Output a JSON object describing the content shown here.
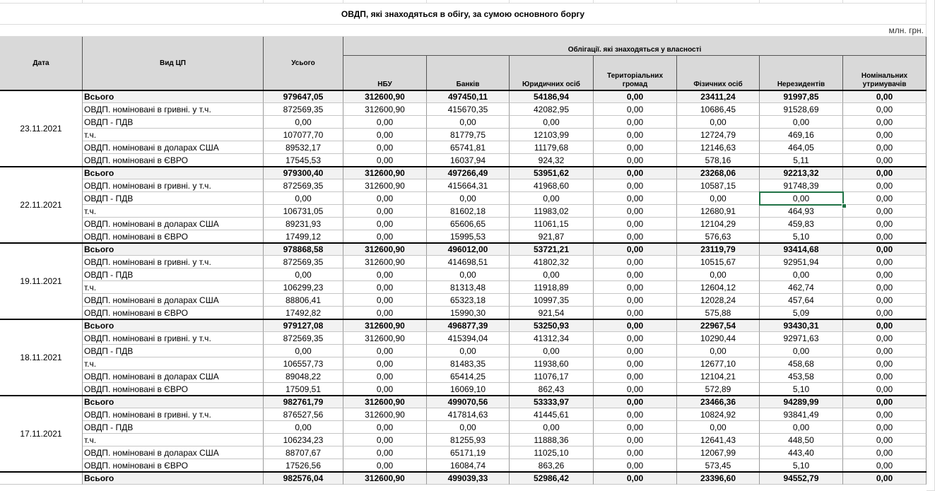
{
  "title": "ОВДП, які знаходяться в обігу, за сумою основного боргу",
  "unit": "млн. грн.",
  "header": {
    "date": "Дата",
    "kind": "Вид ЦП",
    "total": "Усього",
    "group": "Облігації. які знаходяться у власності",
    "columns": [
      "НБУ",
      "Банків",
      "Юридичних осіб",
      "Територіальних громад",
      "Фізичних осіб",
      "Нерезидентів",
      "Номінальних утримувачів"
    ]
  },
  "groups": [
    {
      "date": "23.11.2021",
      "rows": [
        {
          "kind": "Всього",
          "cells": [
            "979647,05",
            "312600,90",
            "497450,11",
            "54186,94",
            "0,00",
            "23411,24",
            "91997,85",
            "0,00"
          ]
        },
        {
          "kind": "ОВДП. номіновані в гривні. у т.ч.",
          "cells": [
            "872569,35",
            "312600,90",
            "415670,35",
            "42082,95",
            "0,00",
            "10686,45",
            "91528,69",
            "0,00"
          ]
        },
        {
          "kind": "ОВДП - ПДВ",
          "cells": [
            "0,00",
            "0,00",
            "0,00",
            "0,00",
            "0,00",
            "0,00",
            "0,00",
            "0,00"
          ]
        },
        {
          "kind": "т.ч.",
          "cells": [
            "107077,70",
            "0,00",
            "81779,75",
            "12103,99",
            "0,00",
            "12724,79",
            "469,16",
            "0,00"
          ]
        },
        {
          "kind": "ОВДП. номіновані в доларах США",
          "cells": [
            "89532,17",
            "0,00",
            "65741,81",
            "11179,68",
            "0,00",
            "12146,63",
            "464,05",
            "0,00"
          ]
        },
        {
          "kind": "ОВДП. номіновані в ЄВРО",
          "cells": [
            "17545,53",
            "0,00",
            "16037,94",
            "924,32",
            "0,00",
            "578,16",
            "5,11",
            "0,00"
          ]
        }
      ]
    },
    {
      "date": "22.11.2021",
      "rows": [
        {
          "kind": "Всього",
          "cells": [
            "979300,40",
            "312600,90",
            "497266,49",
            "53951,62",
            "0,00",
            "23268,06",
            "92213,32",
            "0,00"
          ]
        },
        {
          "kind": "ОВДП. номіновані в гривні. у т.ч.",
          "cells": [
            "872569,35",
            "312600,90",
            "415664,31",
            "41968,60",
            "0,00",
            "10587,15",
            "91748,39",
            "0,00"
          ]
        },
        {
          "kind": "ОВДП - ПДВ",
          "cells": [
            "0,00",
            "0,00",
            "0,00",
            "0,00",
            "0,00",
            "0,00",
            "0,00",
            "0,00"
          ]
        },
        {
          "kind": "т.ч.",
          "cells": [
            "106731,05",
            "0,00",
            "81602,18",
            "11983,02",
            "0,00",
            "12680,91",
            "464,93",
            "0,00"
          ]
        },
        {
          "kind": "ОВДП. номіновані в доларах США",
          "cells": [
            "89231,93",
            "0,00",
            "65606,65",
            "11061,15",
            "0,00",
            "12104,29",
            "459,83",
            "0,00"
          ]
        },
        {
          "kind": "ОВДП. номіновані в ЄВРО",
          "cells": [
            "17499,12",
            "0,00",
            "15995,53",
            "921,87",
            "0,00",
            "576,63",
            "5,10",
            "0,00"
          ]
        }
      ]
    },
    {
      "date": "19.11.2021",
      "rows": [
        {
          "kind": "Всього",
          "cells": [
            "978868,58",
            "312600,90",
            "496012,00",
            "53721,21",
            "0,00",
            "23119,79",
            "93414,68",
            "0,00"
          ]
        },
        {
          "kind": "ОВДП. номіновані в гривні. у т.ч.",
          "cells": [
            "872569,35",
            "312600,90",
            "414698,51",
            "41802,32",
            "0,00",
            "10515,67",
            "92951,94",
            "0,00"
          ]
        },
        {
          "kind": "ОВДП - ПДВ",
          "cells": [
            "0,00",
            "0,00",
            "0,00",
            "0,00",
            "0,00",
            "0,00",
            "0,00",
            "0,00"
          ]
        },
        {
          "kind": "т.ч.",
          "cells": [
            "106299,23",
            "0,00",
            "81313,48",
            "11918,89",
            "0,00",
            "12604,12",
            "462,74",
            "0,00"
          ]
        },
        {
          "kind": "ОВДП. номіновані в доларах США",
          "cells": [
            "88806,41",
            "0,00",
            "65323,18",
            "10997,35",
            "0,00",
            "12028,24",
            "457,64",
            "0,00"
          ]
        },
        {
          "kind": "ОВДП. номіновані в ЄВРО",
          "cells": [
            "17492,82",
            "0,00",
            "15990,30",
            "921,54",
            "0,00",
            "575,88",
            "5,09",
            "0,00"
          ]
        }
      ]
    },
    {
      "date": "18.11.2021",
      "rows": [
        {
          "kind": "Всього",
          "cells": [
            "979127,08",
            "312600,90",
            "496877,39",
            "53250,93",
            "0,00",
            "22967,54",
            "93430,31",
            "0,00"
          ]
        },
        {
          "kind": "ОВДП. номіновані в гривні. у т.ч.",
          "cells": [
            "872569,35",
            "312600,90",
            "415394,04",
            "41312,34",
            "0,00",
            "10290,44",
            "92971,63",
            "0,00"
          ]
        },
        {
          "kind": "ОВДП - ПДВ",
          "cells": [
            "0,00",
            "0,00",
            "0,00",
            "0,00",
            "0,00",
            "0,00",
            "0,00",
            "0,00"
          ]
        },
        {
          "kind": "т.ч.",
          "cells": [
            "106557,73",
            "0,00",
            "81483,35",
            "11938,60",
            "0,00",
            "12677,10",
            "458,68",
            "0,00"
          ]
        },
        {
          "kind": "ОВДП. номіновані в доларах США",
          "cells": [
            "89048,22",
            "0,00",
            "65414,25",
            "11076,17",
            "0,00",
            "12104,21",
            "453,58",
            "0,00"
          ]
        },
        {
          "kind": "ОВДП. номіновані в ЄВРО",
          "cells": [
            "17509,51",
            "0,00",
            "16069,10",
            "862,43",
            "0,00",
            "572,89",
            "5,10",
            "0,00"
          ]
        }
      ]
    },
    {
      "date": "17.11.2021",
      "rows": [
        {
          "kind": "Всього",
          "cells": [
            "982761,79",
            "312600,90",
            "499070,56",
            "53333,97",
            "0,00",
            "23466,36",
            "94289,99",
            "0,00"
          ]
        },
        {
          "kind": "ОВДП. номіновані в гривні. у т.ч.",
          "cells": [
            "876527,56",
            "312600,90",
            "417814,63",
            "41445,61",
            "0,00",
            "10824,92",
            "93841,49",
            "0,00"
          ]
        },
        {
          "kind": "ОВДП - ПДВ",
          "cells": [
            "0,00",
            "0,00",
            "0,00",
            "0,00",
            "0,00",
            "0,00",
            "0,00",
            "0,00"
          ]
        },
        {
          "kind": "т.ч.",
          "cells": [
            "106234,23",
            "0,00",
            "81255,93",
            "11888,36",
            "0,00",
            "12641,43",
            "448,50",
            "0,00"
          ]
        },
        {
          "kind": "ОВДП. номіновані в доларах США",
          "cells": [
            "88707,67",
            "0,00",
            "65171,19",
            "11025,10",
            "0,00",
            "12067,99",
            "443,40",
            "0,00"
          ]
        },
        {
          "kind": "ОВДП. номіновані в ЄВРО",
          "cells": [
            "17526,56",
            "0,00",
            "16084,74",
            "863,26",
            "0,00",
            "573,45",
            "5,10",
            "0,00"
          ]
        }
      ]
    },
    {
      "rows": [
        {
          "kind": "Всього",
          "cells": [
            "982576,04",
            "312600,90",
            "499039,33",
            "52986,42",
            "0,00",
            "23396,60",
            "94552,79",
            "0,00"
          ]
        }
      ]
    }
  ]
}
